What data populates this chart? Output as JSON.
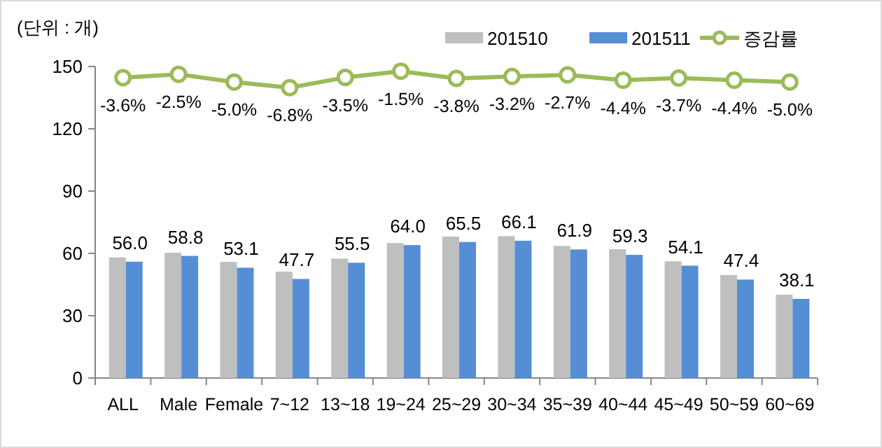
{
  "chart_data": {
    "type": "bar",
    "ylabel": "(단위 : 개)",
    "categories": [
      "ALL",
      "Male",
      "Female",
      "7~12",
      "13~18",
      "19~24",
      "25~29",
      "30~34",
      "35~39",
      "40~44",
      "45~49",
      "50~59",
      "60~69"
    ],
    "series": [
      {
        "name": "201510",
        "color": "#bfbfbf",
        "values": [
          58.1,
          60.3,
          55.9,
          51.2,
          57.5,
          65.0,
          68.1,
          68.3,
          63.6,
          62.0,
          56.2,
          49.6,
          40.1
        ]
      },
      {
        "name": "201511",
        "color": "#558ed5",
        "values": [
          56.0,
          58.8,
          53.1,
          47.7,
          55.5,
          64.0,
          65.5,
          66.1,
          61.9,
          59.3,
          54.1,
          47.4,
          38.1
        ],
        "value_labels": [
          "56.0",
          "58.8",
          "53.1",
          "47.7",
          "55.5",
          "64.0",
          "65.5",
          "66.1",
          "61.9",
          "59.3",
          "54.1",
          "47.4",
          "38.1"
        ]
      },
      {
        "name": "증감률",
        "type": "line",
        "axis": "y2",
        "color": "#9bbb59",
        "marker": "circle",
        "values": [
          -3.6,
          -2.5,
          -5.0,
          -6.8,
          -3.5,
          -1.5,
          -3.8,
          -3.2,
          -2.7,
          -4.4,
          -3.7,
          -4.4,
          -5.0
        ],
        "value_labels": [
          "-3.6%",
          "-2.5%",
          "-5.0%",
          "-6.8%",
          "-3.5%",
          "-1.5%",
          "-3.8%",
          "-3.2%",
          "-2.7%",
          "-4.4%",
          "-3.7%",
          "-4.4%",
          "-5.0%"
        ]
      }
    ],
    "ylim": [
      0,
      150
    ],
    "yticks": [
      0,
      30,
      60,
      90,
      120,
      150
    ],
    "y2lim": [
      -100,
      0
    ],
    "legend": "top right"
  }
}
